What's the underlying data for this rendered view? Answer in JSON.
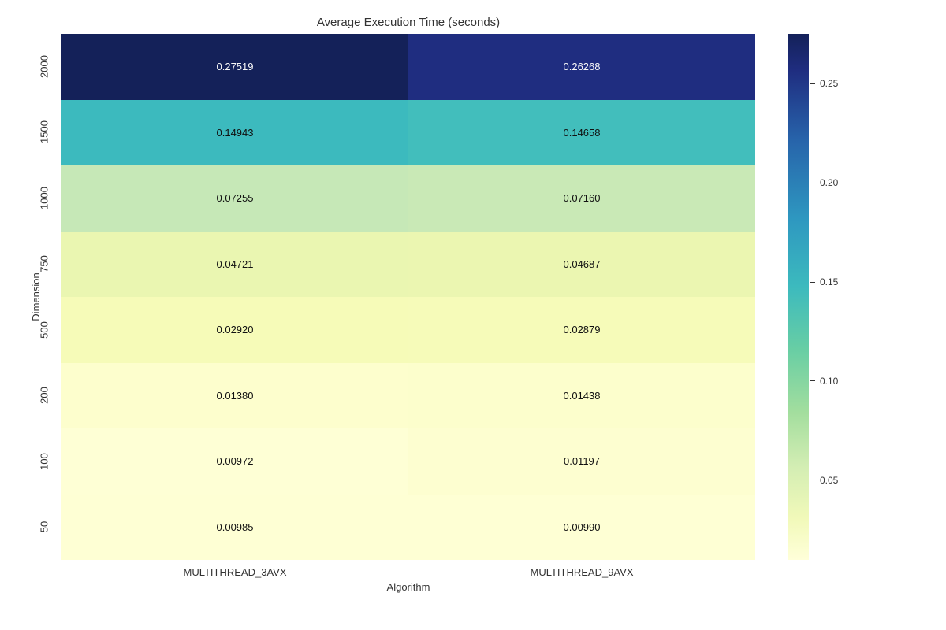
{
  "heatmap": {
    "type": "heatmap",
    "title": "Average Execution Time (seconds)",
    "xlabel": "Algorithm",
    "ylabel": "Dimension",
    "title_fontsize": 15,
    "label_fontsize": 13,
    "tick_fontsize": 13,
    "annot_fontsize": 13,
    "background_color": "#ffffff",
    "x_categories": [
      "MULTITHREAD_3AVX",
      "MULTITHREAD_9AVX"
    ],
    "y_categories": [
      "2000",
      "1500",
      "1000",
      "750",
      "500",
      "200",
      "100",
      "50"
    ],
    "values": [
      [
        0.27519,
        0.26268
      ],
      [
        0.14943,
        0.14658
      ],
      [
        0.07255,
        0.0716
      ],
      [
        0.04721,
        0.04687
      ],
      [
        0.0292,
        0.02879
      ],
      [
        0.0138,
        0.01438
      ],
      [
        0.00972,
        0.01197
      ],
      [
        0.00985,
        0.0099
      ]
    ],
    "value_format_decimals": 5,
    "cell_colors": [
      [
        "#142159",
        "#1f2d80"
      ],
      [
        "#3cbabe",
        "#42bebc"
      ],
      [
        "#c6e8b7",
        "#c9e9b6"
      ],
      [
        "#eaf6b1",
        "#ebf6b1"
      ],
      [
        "#f6fbb8",
        "#f6fbb9"
      ],
      [
        "#fdfecd",
        "#fcfecc"
      ],
      [
        "#feffd5",
        "#fdfed0"
      ],
      [
        "#feffd4",
        "#feffd4"
      ]
    ],
    "cell_text_colors": [
      [
        "light",
        "light"
      ],
      [
        "dark",
        "dark"
      ],
      [
        "dark",
        "dark"
      ],
      [
        "dark",
        "dark"
      ],
      [
        "dark",
        "dark"
      ],
      [
        "dark",
        "dark"
      ],
      [
        "dark",
        "dark"
      ],
      [
        "dark",
        "dark"
      ]
    ],
    "vmin": 0.00972,
    "vmax": 0.27519,
    "colorbar_ticks": [
      0.05,
      0.1,
      0.15,
      0.2,
      0.25
    ],
    "colorbar_tick_labels": [
      "0.05",
      "0.10",
      "0.15",
      "0.20",
      "0.25"
    ],
    "colorbar_gradient_stops": [
      {
        "pct": 0,
        "color": "#142159"
      },
      {
        "pct": 7,
        "color": "#1f2d80"
      },
      {
        "pct": 20,
        "color": "#2763aa"
      },
      {
        "pct": 35,
        "color": "#2e97c0"
      },
      {
        "pct": 48,
        "color": "#3cbabe"
      },
      {
        "pct": 60,
        "color": "#68cea4"
      },
      {
        "pct": 72,
        "color": "#a3de9e"
      },
      {
        "pct": 82,
        "color": "#d2edb3"
      },
      {
        "pct": 92,
        "color": "#f1f9b9"
      },
      {
        "pct": 100,
        "color": "#ffffd9"
      }
    ]
  }
}
